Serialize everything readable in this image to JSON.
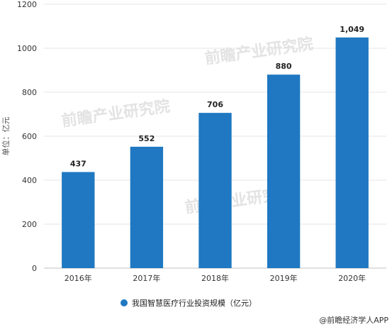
{
  "chart_data": {
    "type": "bar",
    "categories": [
      "2016年",
      "2017年",
      "2018年",
      "2019年",
      "2020年"
    ],
    "series": [
      {
        "name": "我国智慧医疗行业投资规模（亿元）",
        "values": [
          437,
          552,
          706,
          880,
          1049
        ]
      }
    ],
    "data_labels": [
      "437",
      "552",
      "706",
      "880",
      "1,049"
    ],
    "ylabel": "单位：亿元",
    "ylim": [
      0,
      1200
    ],
    "yticks": [
      "0",
      "200",
      "400",
      "600",
      "800",
      "1000",
      "1200"
    ],
    "grid": true,
    "legend_position": "bottom",
    "bar_color": "#1f78c1"
  },
  "credit": "@前瞻经济学人APP",
  "watermark": "前瞻产业研究院"
}
